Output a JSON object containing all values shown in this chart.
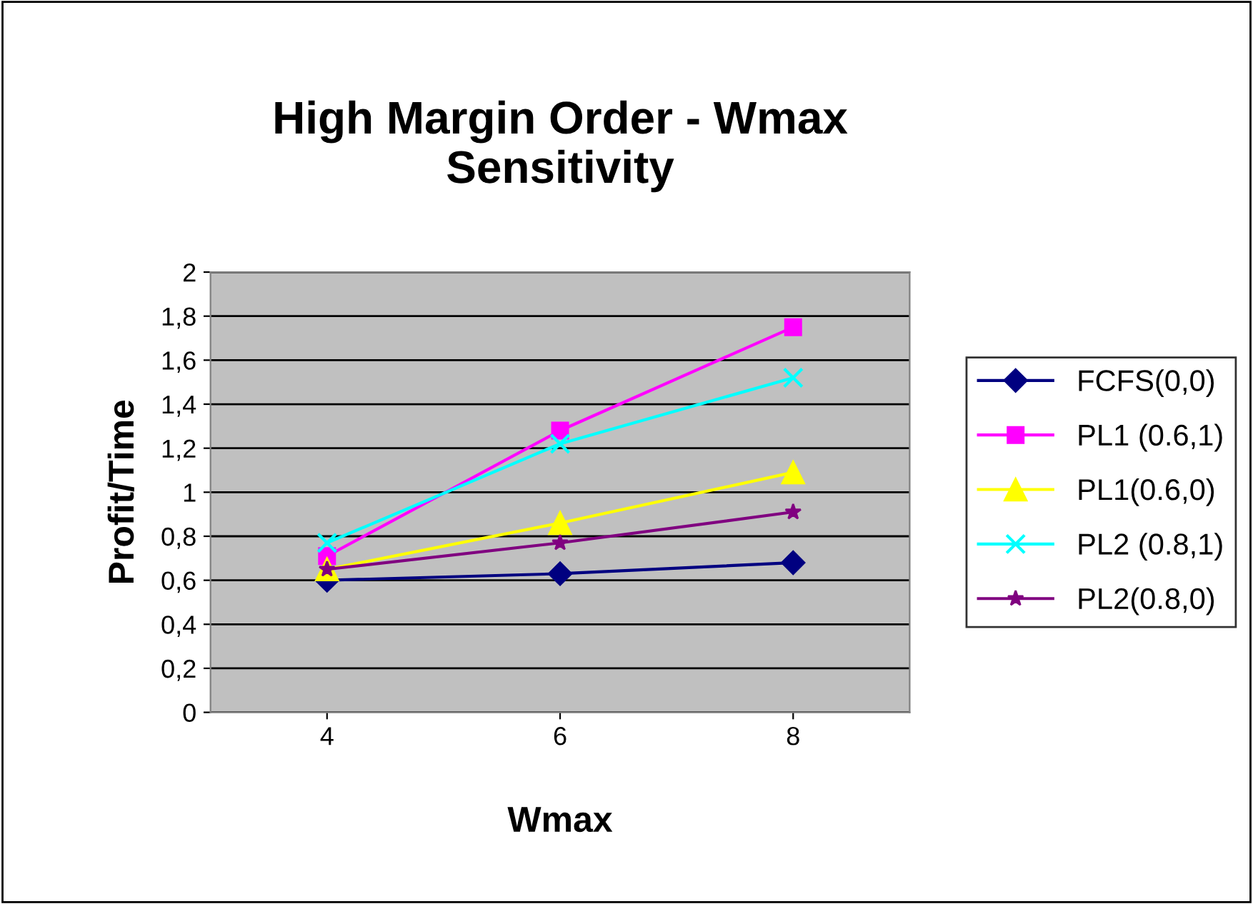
{
  "chart_data": {
    "type": "line",
    "title": "High Margin Order - Wmax\nSensitivity",
    "xlabel": "Wmax",
    "ylabel": "Profit/Time",
    "categories": [
      "4",
      "6",
      "8"
    ],
    "series": [
      {
        "name": "FCFS(0,0)",
        "color": "#000080",
        "marker": "diamond",
        "values": [
          0.6,
          0.63,
          0.68
        ]
      },
      {
        "name": "PL1 (0.6,1)",
        "color": "#ff00ff",
        "marker": "square",
        "values": [
          0.71,
          1.28,
          1.75
        ]
      },
      {
        "name": "PL1(0.6,0)",
        "color": "#ffff00",
        "marker": "triangle",
        "values": [
          0.65,
          0.86,
          1.09
        ]
      },
      {
        "name": "PL2 (0.8,1)",
        "color": "#00ffff",
        "marker": "cross",
        "values": [
          0.77,
          1.22,
          1.52
        ]
      },
      {
        "name": "PL2(0.8,0)",
        "color": "#800080",
        "marker": "star",
        "values": [
          0.65,
          0.77,
          0.91
        ]
      }
    ],
    "ylim": [
      0,
      2
    ],
    "yticks": [
      0,
      {
        "value": 0.2,
        "label": "0,2"
      },
      {
        "value": 0.4,
        "label": "0,4"
      },
      {
        "value": 0.6,
        "label": "0,6"
      },
      {
        "value": 0.8,
        "label": "0,8"
      },
      1,
      {
        "value": 1.2,
        "label": "1,2"
      },
      {
        "value": 1.4,
        "label": "1,4"
      },
      {
        "value": 1.6,
        "label": "1,6"
      },
      {
        "value": 1.8,
        "label": "1,8"
      },
      2
    ],
    "grid": "y",
    "legend": "right",
    "line_style": "solid"
  }
}
